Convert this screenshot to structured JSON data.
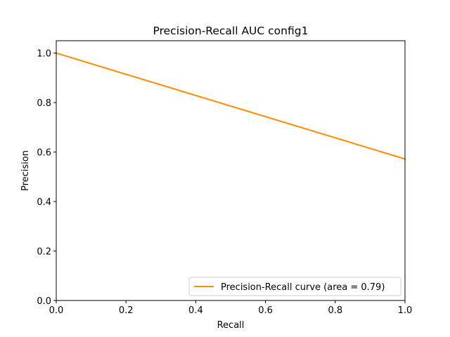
{
  "chart_data": {
    "type": "line",
    "title": "Precision-Recall AUC  config1",
    "xlabel": "Recall",
    "ylabel": "Precision",
    "xlim": [
      0.0,
      1.0
    ],
    "ylim": [
      0.0,
      1.05
    ],
    "x_ticks": [
      "0.0",
      "0.2",
      "0.4",
      "0.6",
      "0.8",
      "1.0"
    ],
    "y_ticks": [
      "0.0",
      "0.2",
      "0.4",
      "0.6",
      "0.8",
      "1.0"
    ],
    "grid": false,
    "legend_position": "lower-right",
    "series": [
      {
        "name": "Precision-Recall curve (area = 0.79)",
        "color": "#ff8c00",
        "x": [
          0.0,
          1.0
        ],
        "y": [
          1.0,
          0.572
        ]
      }
    ]
  }
}
